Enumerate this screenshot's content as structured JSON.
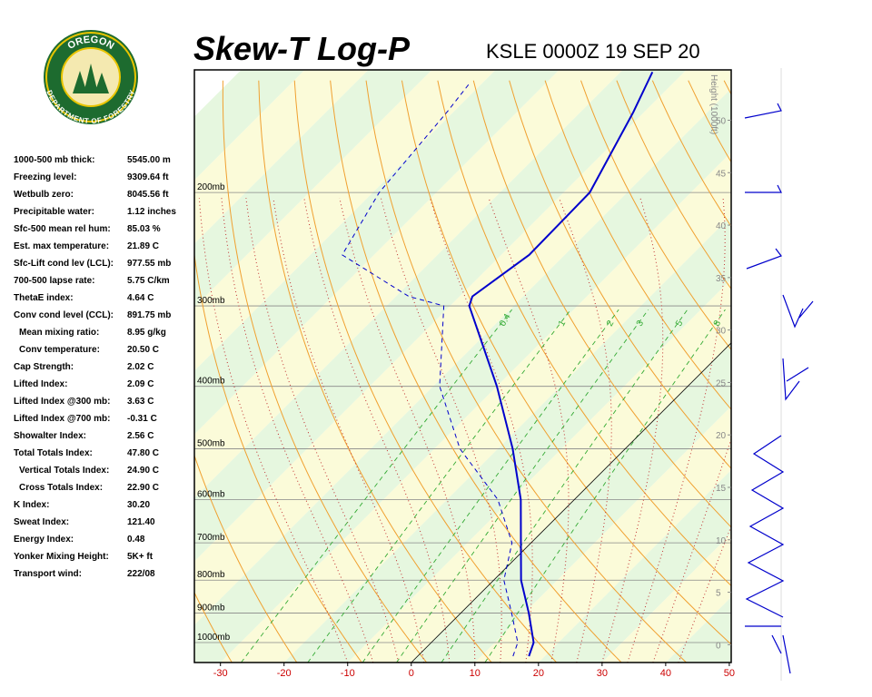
{
  "logo": {
    "top": "OREGON",
    "bottom": "DEPARTMENT OF FORESTRY"
  },
  "stats": [
    [
      "1000-500 mb thick:",
      "5545.00 m"
    ],
    [
      "Freezing level:",
      "9309.64 ft"
    ],
    [
      "Wetbulb zero:",
      "8045.56 ft"
    ],
    [
      "Precipitable water:",
      "1.12 inches"
    ],
    [
      "Sfc-500 mean rel hum:",
      "85.03 %"
    ],
    [
      "Est. max temperature:",
      "21.89 C"
    ],
    [
      "Sfc-Lift cond lev (LCL):",
      "977.55 mb"
    ],
    [
      "700-500 lapse rate:",
      "5.75 C/km"
    ],
    [
      "ThetaE index:",
      "4.64 C"
    ],
    [
      "Conv cond level (CCL):",
      "891.75 mb"
    ],
    [
      "Mean mixing ratio:",
      "8.95 g/kg"
    ],
    [
      "Conv temperature:",
      "20.50 C"
    ],
    [
      "Cap Strength:",
      "2.02 C"
    ],
    [
      "Lifted Index:",
      "2.09 C"
    ],
    [
      "Lifted Index @300 mb:",
      "3.63 C"
    ],
    [
      "Lifted Index @700 mb:",
      "-0.31 C"
    ],
    [
      "Showalter Index:",
      "2.56 C"
    ],
    [
      "Total Totals Index:",
      "47.80 C"
    ],
    [
      "Vertical Totals Index:",
      "24.90 C"
    ],
    [
      "Cross Totals Index:",
      "22.90 C"
    ],
    [
      "K Index:",
      "30.20"
    ],
    [
      "Sweat Index:",
      "121.40"
    ],
    [
      "Energy Index:",
      "0.48"
    ],
    [
      "Yonker Mixing Height:",
      "5K+ ft"
    ],
    [
      "Transport wind:",
      "222/08"
    ]
  ],
  "chart_data": {
    "type": "skewt",
    "title": "Skew-T Log-P",
    "subtitle": "KSLE 0000Z 19 SEP 20",
    "xlim": [
      -34.1,
      50.3
    ],
    "xticks": [
      -30,
      -20,
      -10,
      0,
      10,
      20,
      30,
      40,
      50
    ],
    "ylim": [
      1074,
      129
    ],
    "log_y": true,
    "yticks": [
      {
        "value": 1000,
        "label": "1000mb"
      },
      {
        "value": 900,
        "label": "900mb"
      },
      {
        "value": 800,
        "label": "800mb"
      },
      {
        "value": 700,
        "label": "700mb"
      },
      {
        "value": 600,
        "label": "600mb"
      },
      {
        "value": 500,
        "label": "500mb"
      },
      {
        "value": 400,
        "label": "400mb"
      },
      {
        "value": 300,
        "label": "300mb"
      },
      {
        "value": 200,
        "label": "200mb"
      }
    ],
    "y2label": "Height (1000ft)",
    "y2lim": [
      -1.7,
      54.8
    ],
    "y2ticks": [
      0,
      5,
      10,
      15,
      20,
      25,
      30,
      35,
      40,
      45,
      50
    ],
    "mixing_ratios": [
      0.4,
      1,
      2,
      3,
      5,
      8
    ],
    "series": [
      {
        "color": "#0000cc",
        "dashed": false,
        "pressure": [
          1050,
          1000,
          900,
          800,
          700,
          600,
          500,
          400,
          300,
          290,
          250,
          200,
          150,
          130
        ],
        "temperature": [
          17.5,
          16.1,
          10.7,
          4.3,
          -1.6,
          -8.4,
          -17.7,
          -30,
          -47,
          -48,
          -45.6,
          -45.9,
          -51.7,
          -55
        ]
      },
      {
        "color": "#0000cc",
        "dashed": true,
        "pressure": [
          1050,
          1000,
          900,
          800,
          700,
          600,
          500,
          400,
          300,
          290,
          250,
          200,
          150,
          135
        ],
        "temperature": [
          15,
          13.6,
          8,
          1.6,
          -3,
          -12,
          -26,
          -39,
          -51,
          -58,
          -75,
          -79,
          -81,
          -82
        ]
      }
    ]
  }
}
